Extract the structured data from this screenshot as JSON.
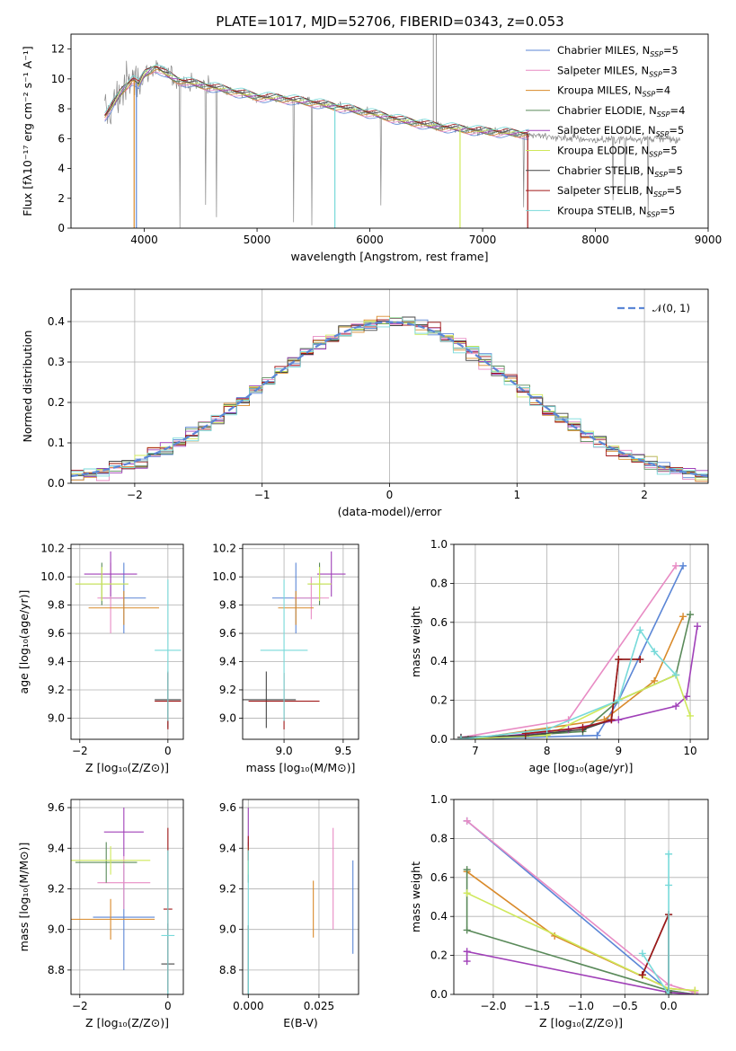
{
  "figure_title": "PLATE=1017, MJD=52706, FIBERID=0343, z=0.053",
  "colors": {
    "Chabrier MILES": "#5b86d6",
    "Salpeter MILES": "#e88bc4",
    "Kroupa MILES": "#d98a2a",
    "Chabrier ELODIE": "#5a8a5a",
    "Salpeter ELODIE": "#a040b8",
    "Kroupa ELODIE": "#cfe85a",
    "Chabrier STELIB": "#444444",
    "Salpeter STELIB": "#a01818",
    "Kroupa STELIB": "#78dada",
    "data": "#888888",
    "normal": "#5b86d6"
  },
  "chart_data": [
    {
      "id": "spectrum",
      "type": "line",
      "xlabel": "wavelength [Angstrom, rest frame]",
      "ylabel": "Flux [fλ10⁻¹⁷ erg cm⁻² s⁻¹ A⁻¹]",
      "xlim": [
        3350,
        9000
      ],
      "ylim": [
        0,
        13
      ],
      "xticks": [
        4000,
        5000,
        6000,
        7000,
        8000,
        9000
      ],
      "yticks": [
        0,
        2,
        4,
        6,
        8,
        10,
        12
      ],
      "legend_position": "upper-right",
      "legend": [
        {
          "model": "Chabrier MILES",
          "label": "Chabrier MILES, N",
          "sub": "SSP",
          "suffix": "=5"
        },
        {
          "model": "Salpeter MILES",
          "label": "Salpeter MILES, N",
          "sub": "SSP",
          "suffix": "=3"
        },
        {
          "model": "Kroupa MILES",
          "label": "Kroupa MILES, N",
          "sub": "SSP",
          "suffix": "=4"
        },
        {
          "model": "Chabrier ELODIE",
          "label": "Chabrier ELODIE, N",
          "sub": "SSP",
          "suffix": "=4"
        },
        {
          "model": "Salpeter ELODIE",
          "label": "Salpeter ELODIE, N",
          "sub": "SSP",
          "suffix": "=5"
        },
        {
          "model": "Kroupa ELODIE",
          "label": "Kroupa ELODIE, N",
          "sub": "SSP",
          "suffix": "=5"
        },
        {
          "model": "Chabrier STELIB",
          "label": "Chabrier STELIB, N",
          "sub": "SSP",
          "suffix": "=5"
        },
        {
          "model": "Salpeter STELIB",
          "label": "Salpeter STELIB, N",
          "sub": "SSP",
          "suffix": "=5"
        },
        {
          "model": "Kroupa STELIB",
          "label": "Kroupa STELIB, N",
          "sub": "SSP",
          "suffix": "=5"
        }
      ],
      "continuum": [
        [
          3650,
          7.5
        ],
        [
          3700,
          8.0
        ],
        [
          3800,
          9.2
        ],
        [
          3900,
          10.0
        ],
        [
          3950,
          9.6
        ],
        [
          4000,
          10.3
        ],
        [
          4100,
          10.8
        ],
        [
          4200,
          10.3
        ],
        [
          4300,
          9.9
        ],
        [
          4500,
          9.6
        ],
        [
          4700,
          9.3
        ],
        [
          5000,
          8.8
        ],
        [
          5200,
          8.7
        ],
        [
          5500,
          8.4
        ],
        [
          5800,
          8.0
        ],
        [
          6000,
          7.7
        ],
        [
          6300,
          7.2
        ],
        [
          6600,
          6.8
        ],
        [
          7000,
          6.5
        ],
        [
          7400,
          6.3
        ],
        [
          7600,
          6.1
        ],
        [
          8000,
          5.9
        ],
        [
          8300,
          6.0
        ],
        [
          8600,
          6.0
        ],
        [
          8750,
          5.9
        ]
      ],
      "model_drops": [
        {
          "model": "Kroupa MILES",
          "x": 3910
        },
        {
          "model": "Chabrier MILES",
          "x": 3930
        },
        {
          "model": "Kroupa STELIB",
          "x": 5690
        },
        {
          "model": "Kroupa ELODIE",
          "x": 6800
        },
        {
          "model": "Salpeter STELIB",
          "x": 7400
        }
      ]
    },
    {
      "id": "residual_hist",
      "type": "step",
      "xlabel": "(data-model)/error",
      "ylabel": "Normed distribution",
      "xlim": [
        -2.5,
        2.5
      ],
      "ylim": [
        0,
        0.48
      ],
      "xticks": [
        -2,
        -1,
        0,
        1,
        2
      ],
      "yticks": [
        0.0,
        0.1,
        0.2,
        0.3,
        0.4
      ],
      "grid": true,
      "legend_position": "upper-right",
      "legend": [
        {
          "label": "𝒩(0, 1)",
          "style": "dashed"
        }
      ],
      "bin_width": 0.1,
      "bin_start": -2.5
    },
    {
      "id": "age_vs_Z",
      "type": "errorbar",
      "xlabel": "Z [log₁₀(Z/Z⊙)]",
      "ylabel": "age  [log₁₀(age/yr)]",
      "xlim": [
        -2.2,
        0.35
      ],
      "ylim": [
        8.85,
        10.23
      ],
      "xticks": [
        -2,
        0
      ],
      "yticks": [
        9.0,
        9.2,
        9.4,
        9.6,
        9.8,
        10.0,
        10.2
      ],
      "grid": true,
      "points": [
        {
          "model": "Chabrier MILES",
          "x": -1.0,
          "xerr": 0.5,
          "y": 9.85,
          "yerr": 0.25
        },
        {
          "model": "Salpeter MILES",
          "x": -1.3,
          "xerr": 0.3,
          "y": 9.85,
          "yerr": 0.25
        },
        {
          "model": "Kroupa MILES",
          "x": -1.0,
          "xerr": 0.8,
          "y": 9.78,
          "yerr": 0.12
        },
        {
          "model": "Chabrier ELODIE",
          "x": -1.5,
          "xerr": 0.6,
          "y": 9.95,
          "yerr": 0.15
        },
        {
          "model": "Salpeter ELODIE",
          "x": -1.3,
          "xerr": 0.6,
          "y": 10.02,
          "yerr": 0.16
        },
        {
          "model": "Kroupa ELODIE",
          "x": -1.5,
          "xerr": 0.6,
          "y": 9.95,
          "yerr": 0.12
        },
        {
          "model": "Chabrier STELIB",
          "x": 0.0,
          "xerr": 0.3,
          "y": 9.13,
          "yerr": 0.2
        },
        {
          "model": "Salpeter STELIB",
          "x": 0.0,
          "xerr": 0.3,
          "y": 9.12,
          "yerr": 0.2
        },
        {
          "model": "Kroupa STELIB",
          "x": 0.0,
          "xerr": 0.3,
          "y": 9.48,
          "yerr": 0.5
        }
      ]
    },
    {
      "id": "age_vs_mass",
      "type": "errorbar",
      "xlabel": "mass [log₁₀(M/M⊙)]",
      "ylabel": "",
      "xlim": [
        8.65,
        9.63
      ],
      "ylim": [
        8.85,
        10.23
      ],
      "xticks": [
        9.0,
        9.5
      ],
      "yticks": [
        9.0,
        9.2,
        9.4,
        9.6,
        9.8,
        10.0,
        10.2
      ],
      "grid": true,
      "points": [
        {
          "model": "Chabrier MILES",
          "x": 9.1,
          "xerr": 0.2,
          "y": 9.85,
          "yerr": 0.25
        },
        {
          "model": "Salpeter MILES",
          "x": 9.23,
          "xerr": 0.15,
          "y": 9.85,
          "yerr": 0.15
        },
        {
          "model": "Kroupa MILES",
          "x": 9.1,
          "xerr": 0.15,
          "y": 9.78,
          "yerr": 0.12
        },
        {
          "model": "Chabrier ELODIE",
          "x": 9.3,
          "xerr": 0.1,
          "y": 9.95,
          "yerr": 0.15
        },
        {
          "model": "Salpeter ELODIE",
          "x": 9.4,
          "xerr": 0.12,
          "y": 10.02,
          "yerr": 0.16
        },
        {
          "model": "Kroupa ELODIE",
          "x": 9.3,
          "xerr": 0.1,
          "y": 9.95,
          "yerr": 0.12
        },
        {
          "model": "Chabrier STELIB",
          "x": 8.85,
          "xerr": 0.25,
          "y": 9.13,
          "yerr": 0.2
        },
        {
          "model": "Salpeter STELIB",
          "x": 9.0,
          "xerr": 0.3,
          "y": 9.12,
          "yerr": 0.2
        },
        {
          "model": "Kroupa STELIB",
          "x": 9.0,
          "xerr": 0.2,
          "y": 9.48,
          "yerr": 0.5
        }
      ]
    },
    {
      "id": "mass_weight_vs_age",
      "type": "line",
      "xlabel": "age  [log₁₀(age/yr)]",
      "ylabel": "mass weight",
      "xlim": [
        6.7,
        10.25
      ],
      "ylim": [
        0,
        1.0
      ],
      "xticks": [
        7,
        8,
        9,
        10
      ],
      "yticks": [
        0.0,
        0.2,
        0.4,
        0.6,
        0.8,
        1.0
      ],
      "grid": true,
      "series": [
        {
          "model": "Chabrier MILES",
          "x": [
            6.8,
            8.7,
            9.0,
            9.9
          ],
          "y": [
            0.0,
            0.02,
            0.2,
            0.89
          ]
        },
        {
          "model": "Salpeter MILES",
          "x": [
            6.8,
            8.3,
            9.8
          ],
          "y": [
            0.01,
            0.1,
            0.89
          ]
        },
        {
          "model": "Kroupa MILES",
          "x": [
            6.9,
            8.8,
            9.5,
            9.9
          ],
          "y": [
            0.0,
            0.1,
            0.3,
            0.63
          ]
        },
        {
          "model": "Chabrier ELODIE",
          "x": [
            6.9,
            8.5,
            9.0,
            9.8,
            10.0
          ],
          "y": [
            0.0,
            0.04,
            0.2,
            0.33,
            0.64
          ]
        },
        {
          "model": "Salpeter ELODIE",
          "x": [
            7.0,
            8.3,
            9.0,
            9.8,
            9.95,
            10.1
          ],
          "y": [
            0.0,
            0.05,
            0.1,
            0.17,
            0.22,
            0.58
          ]
        },
        {
          "model": "Kroupa ELODIE",
          "x": [
            6.8,
            8.0,
            9.0,
            9.8,
            10.0
          ],
          "y": [
            0.0,
            0.02,
            0.2,
            0.33,
            0.12
          ]
        },
        {
          "model": "Chabrier STELIB",
          "x": [
            6.8,
            7.7,
            8.5,
            8.9,
            9.0,
            9.3
          ],
          "y": [
            0.01,
            0.02,
            0.05,
            0.1,
            0.41,
            0.41
          ]
        },
        {
          "model": "Salpeter STELIB",
          "x": [
            7.7,
            8.5,
            8.9,
            9.0,
            9.3
          ],
          "y": [
            0.03,
            0.06,
            0.1,
            0.41,
            0.41
          ]
        },
        {
          "model": "Kroupa STELIB",
          "x": [
            6.8,
            8.0,
            9.0,
            9.3,
            9.5,
            9.8
          ],
          "y": [
            0.0,
            0.05,
            0.2,
            0.56,
            0.45,
            0.33
          ]
        }
      ]
    },
    {
      "id": "mass_vs_Z",
      "type": "errorbar",
      "xlabel": "Z [log₁₀(Z/Z⊙)]",
      "ylabel": "mass [log₁₀(M/M⊙)]",
      "xlim": [
        -2.2,
        0.35
      ],
      "ylim": [
        8.68,
        9.64
      ],
      "xticks": [
        -2,
        0
      ],
      "yticks": [
        8.8,
        9.0,
        9.2,
        9.4,
        9.6
      ],
      "grid": true,
      "points": [
        {
          "model": "Chabrier MILES",
          "x": -1.0,
          "xerr": 0.7,
          "y": 9.06,
          "yerr": 0.26
        },
        {
          "model": "Salpeter MILES",
          "x": -1.0,
          "xerr": 0.6,
          "y": 9.23,
          "yerr": 0.13
        },
        {
          "model": "Kroupa MILES",
          "x": -1.3,
          "xerr": 1.0,
          "y": 9.05,
          "yerr": 0.1
        },
        {
          "model": "Chabrier ELODIE",
          "x": -1.4,
          "xerr": 0.7,
          "y": 9.33,
          "yerr": 0.1
        },
        {
          "model": "Salpeter ELODIE",
          "x": -1.0,
          "xerr": 0.45,
          "y": 9.48,
          "yerr": 0.12
        },
        {
          "model": "Kroupa ELODIE",
          "x": -1.3,
          "xerr": 0.9,
          "y": 9.34,
          "yerr": 0.07
        },
        {
          "model": "Chabrier STELIB",
          "x": 0.0,
          "xerr": 0.15,
          "y": 8.83,
          "yerr": 0.2
        },
        {
          "model": "Salpeter STELIB",
          "x": 0.0,
          "xerr": 0.1,
          "y": 9.1,
          "yerr": 0.4
        },
        {
          "model": "Kroupa STELIB",
          "x": 0.0,
          "xerr": 0.15,
          "y": 8.97,
          "yerr": 0.42
        }
      ]
    },
    {
      "id": "mass_vs_ebv",
      "type": "errorbar",
      "xlabel": "E(B-V)",
      "ylabel": "",
      "xlim": [
        -0.002,
        0.039
      ],
      "ylim": [
        8.68,
        9.64
      ],
      "xticks": [
        0.0,
        0.025
      ],
      "xticklabels": [
        "0.000",
        "0.025"
      ],
      "yticks": [
        8.8,
        9.0,
        9.2,
        9.4,
        9.6
      ],
      "grid": true,
      "points": [
        {
          "model": "Chabrier MILES",
          "x": 0.037,
          "xerr": 0.0,
          "y": 9.11,
          "yerr": 0.23
        },
        {
          "model": "Salpeter MILES",
          "x": 0.03,
          "xerr": 0.0,
          "y": 9.25,
          "yerr": 0.25
        },
        {
          "model": "Kroupa MILES",
          "x": 0.023,
          "xerr": 0.0,
          "y": 9.1,
          "yerr": 0.14
        },
        {
          "model": "Chabrier ELODIE",
          "x": 0.0,
          "xerr": 0.0,
          "y": 9.33,
          "yerr": 0.1
        },
        {
          "model": "Salpeter ELODIE",
          "x": 0.0,
          "xerr": 0.0,
          "y": 9.5,
          "yerr": 0.1
        },
        {
          "model": "Kroupa ELODIE",
          "x": 0.0,
          "xerr": 0.0,
          "y": 9.34,
          "yerr": 0.07
        },
        {
          "model": "Chabrier STELIB",
          "x": 0.0,
          "xerr": 0.0,
          "y": 8.85,
          "yerr": 0.17
        },
        {
          "model": "Salpeter STELIB",
          "x": 0.0,
          "xerr": 0.0,
          "y": 9.4,
          "yerr": 0.06
        },
        {
          "model": "Kroupa STELIB",
          "x": 0.0,
          "xerr": 0.0,
          "y": 8.97,
          "yerr": 0.42
        }
      ]
    },
    {
      "id": "mass_weight_vs_Z",
      "type": "line",
      "xlabel": "Z [log₁₀(Z/Z⊙)]",
      "ylabel": "mass weight",
      "xlim": [
        -2.45,
        0.45
      ],
      "ylim": [
        0,
        1.0
      ],
      "xticks": [
        -2.0,
        -1.5,
        -1.0,
        -0.5,
        0.0
      ],
      "xticklabels": [
        "−2.0",
        "−1.5",
        "−1.0",
        "−0.5",
        "0.0"
      ],
      "yticks": [
        0.0,
        0.2,
        0.4,
        0.6,
        0.8,
        1.0
      ],
      "grid": true,
      "series": [
        {
          "model": "Chabrier MILES",
          "x": [
            -2.3,
            0.0,
            0.3
          ],
          "y": [
            0.89,
            0.02,
            0.0
          ]
        },
        {
          "model": "Salpeter MILES",
          "x": [
            -2.3,
            0.0,
            0.3
          ],
          "y": [
            0.89,
            0.05,
            0.01
          ]
        },
        {
          "model": "Kroupa MILES",
          "x": [
            -2.3,
            -1.3,
            0.0,
            0.3
          ],
          "y": [
            0.63,
            0.3,
            0.03,
            0.02
          ]
        },
        {
          "model": "Chabrier ELODIE",
          "x": [
            -2.3,
            -2.3,
            0.0,
            0.3
          ],
          "y": [
            0.64,
            0.33,
            0.02,
            0.0
          ]
        },
        {
          "model": "Salpeter ELODIE",
          "x": [
            -2.3,
            -2.3,
            0.0,
            0.3
          ],
          "y": [
            0.17,
            0.22,
            0.01,
            0.0
          ]
        },
        {
          "model": "Kroupa ELODIE",
          "x": [
            -2.3,
            0.0,
            0.3
          ],
          "y": [
            0.52,
            0.03,
            0.02
          ]
        },
        {
          "model": "Chabrier STELIB",
          "x": [
            -0.3,
            0.0,
            0.0
          ],
          "y": [
            0.1,
            0.41,
            0.01
          ]
        },
        {
          "model": "Salpeter STELIB",
          "x": [
            -0.3,
            0.0,
            0.0
          ],
          "y": [
            0.1,
            0.41,
            0.0
          ]
        },
        {
          "model": "Kroupa STELIB",
          "x": [
            -0.3,
            0.0,
            0.0,
            0.0
          ],
          "y": [
            0.21,
            0.0,
            0.56,
            0.72
          ]
        }
      ]
    }
  ]
}
